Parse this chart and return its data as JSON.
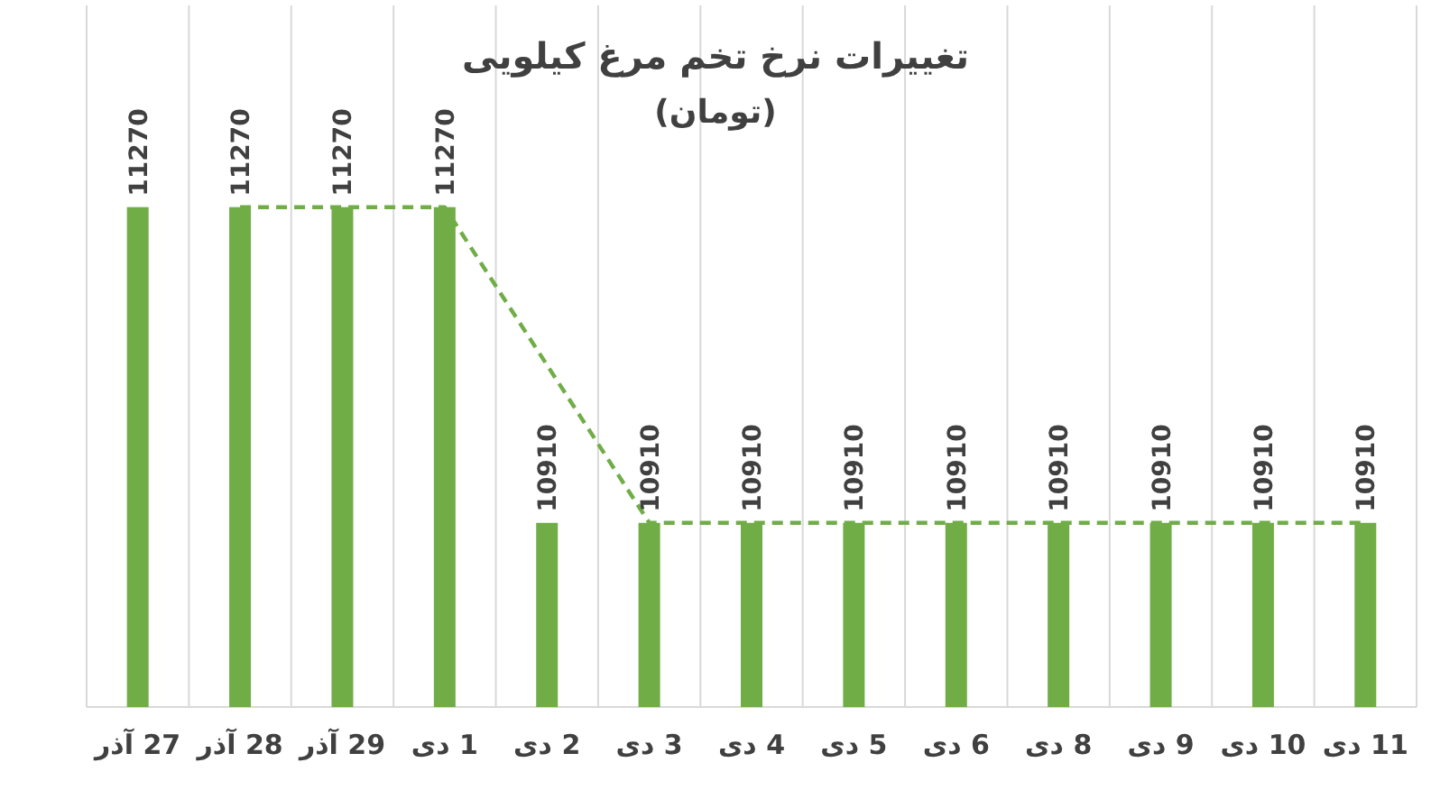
{
  "chart_data": {
    "type": "bar",
    "title": "تغییرات نرخ تخم مرغ کیلویی",
    "subtitle": "(تومان)",
    "categories": [
      "27 آذر",
      "28 آذر",
      "29 آذر",
      "1 دی",
      "2 دی",
      "3 دی",
      "4 دی",
      "5 دی",
      "6 دی",
      "8 دی",
      "9 دی",
      "10 دی",
      "11 دی"
    ],
    "series": [
      {
        "color": "#70ad47",
        "values": [
          11270,
          11270,
          11270,
          11270,
          10910,
          10910,
          10910,
          10910,
          10910,
          10910,
          10910,
          10910,
          10910
        ],
        "value_labels": [
          "11270",
          "11270",
          "11270",
          "11270",
          "10910",
          "10910",
          "10910",
          "10910",
          "10910",
          "10910",
          "10910",
          "10910",
          "10910"
        ]
      },
      {
        "type": "line",
        "color": "#70ad47",
        "line_style": "dashed",
        "marker": "none",
        "x": [
          "28 آذر",
          "29 آذر",
          "1 دی",
          "3 دی",
          "4 دی",
          "5 دی",
          "6 دی",
          "8 دی",
          "9 دی",
          "10 دی",
          "11 دی"
        ],
        "values": [
          11270,
          11270,
          11270,
          10910,
          10910,
          10910,
          10910,
          10910,
          10910,
          10910,
          10910
        ]
      }
    ],
    "ylim": [
      10700,
      11500
    ],
    "tick_labels": "x",
    "grid": "x"
  }
}
